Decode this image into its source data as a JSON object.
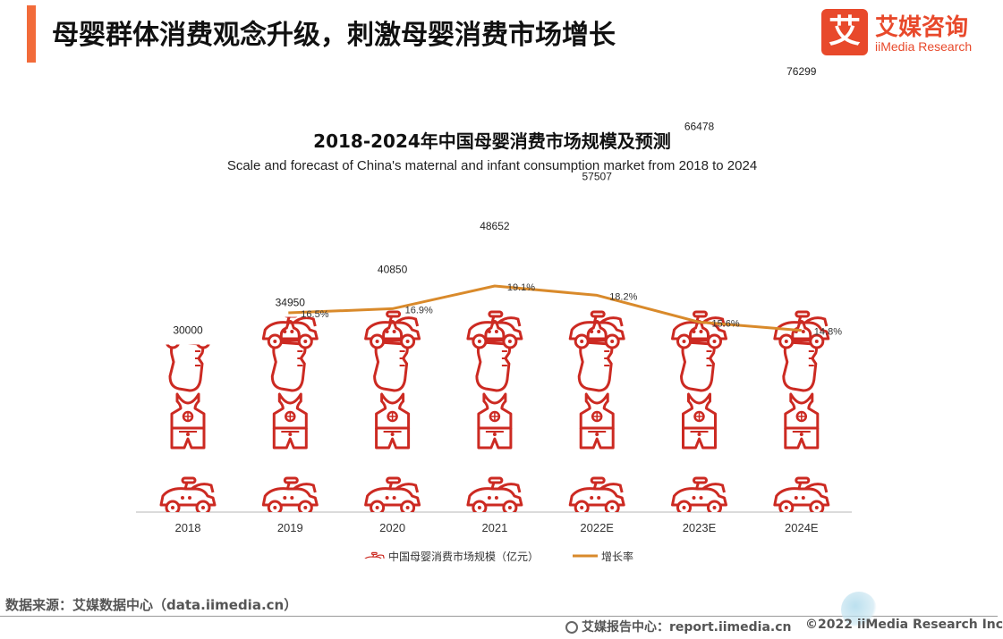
{
  "header": {
    "title": "母婴群体消费观念升级，刺激母婴消费市场增长"
  },
  "logo": {
    "mark": "艾",
    "name_cn": "艾媒咨询",
    "name_en": "iiMedia Research"
  },
  "chart_data": {
    "type": "bar",
    "title": "2018-2024年中国母婴消费市场规模及预测",
    "subtitle": "Scale and forecast of China's maternal and infant consumption market from 2018 to 2024",
    "categories": [
      "2018",
      "2019",
      "2020",
      "2021",
      "2022E",
      "2023E",
      "2024E"
    ],
    "series": [
      {
        "name": "中国母婴消费市场规模（亿元）",
        "type": "bar",
        "values": [
          30000,
          34950,
          40850,
          48652,
          57507,
          66478,
          76299
        ],
        "value_labels": [
          "30000",
          "34950",
          "40850",
          "48652",
          "57507",
          "66478",
          "76299"
        ],
        "color": "#cc2a22"
      },
      {
        "name": "增长率",
        "type": "line",
        "values": [
          null,
          16.5,
          16.9,
          19.1,
          18.2,
          15.6,
          14.8
        ],
        "value_labels": [
          "",
          "16.5%",
          "16.9%",
          "19.1%",
          "18.2%",
          "15.6%",
          "14.8%"
        ],
        "color": "#d98a2b"
      }
    ],
    "bar_axis_range": [
      0,
      80000
    ],
    "rate_axis_range": [
      0,
      25
    ],
    "grid": false,
    "legend": "bottom"
  },
  "footer": {
    "source": "数据来源：艾媒数据中心（data.iimedia.cn）",
    "report": "艾媒报告中心：report.iimedia.cn",
    "copyright": "©2022  iiMedia Research  Inc"
  }
}
